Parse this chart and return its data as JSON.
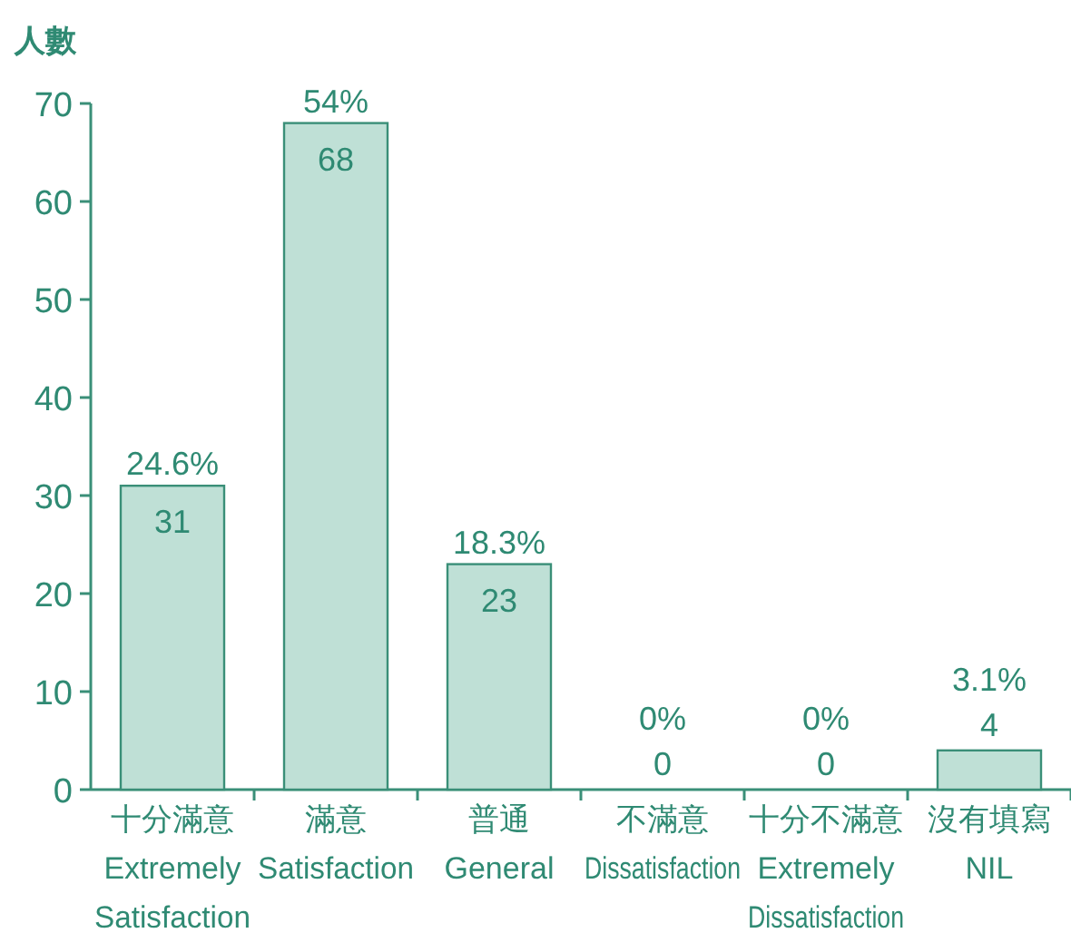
{
  "chart_data": {
    "type": "bar",
    "ylabel": "人數",
    "categories": [
      "十分滿意\nExtremely\nSatisfaction",
      "滿意\nSatisfaction",
      "普通\nGeneral",
      "不滿意\nDissatisfaction",
      "十分不滿意\nExtremely\nDissatisfaction",
      "沒有填寫\nNIL"
    ],
    "values": [
      31,
      68,
      23,
      0,
      0,
      4
    ],
    "color": "#bfe0d6",
    "ylim": [
      0,
      70
    ],
    "yticks": [
      0,
      10,
      20,
      30,
      40,
      50,
      60,
      70
    ],
    "data_labels": true,
    "annotations": [
      {
        "text": "24.6%",
        "x": "十分滿意\nExtremely\nSatisfaction",
        "y": 31
      },
      {
        "text": "54%",
        "x": "滿意\nSatisfaction",
        "y": 68
      },
      {
        "text": "18.3%",
        "x": "普通\nGeneral",
        "y": 23
      },
      {
        "text": "0%",
        "x": "不滿意\nDissatisfaction",
        "y": 0
      },
      {
        "text": "0%",
        "x": "十分不滿意\nExtremely\nDissatisfaction",
        "y": 0
      },
      {
        "text": "3.1%",
        "x": "沒有填寫\nNIL",
        "y": 4
      }
    ]
  }
}
